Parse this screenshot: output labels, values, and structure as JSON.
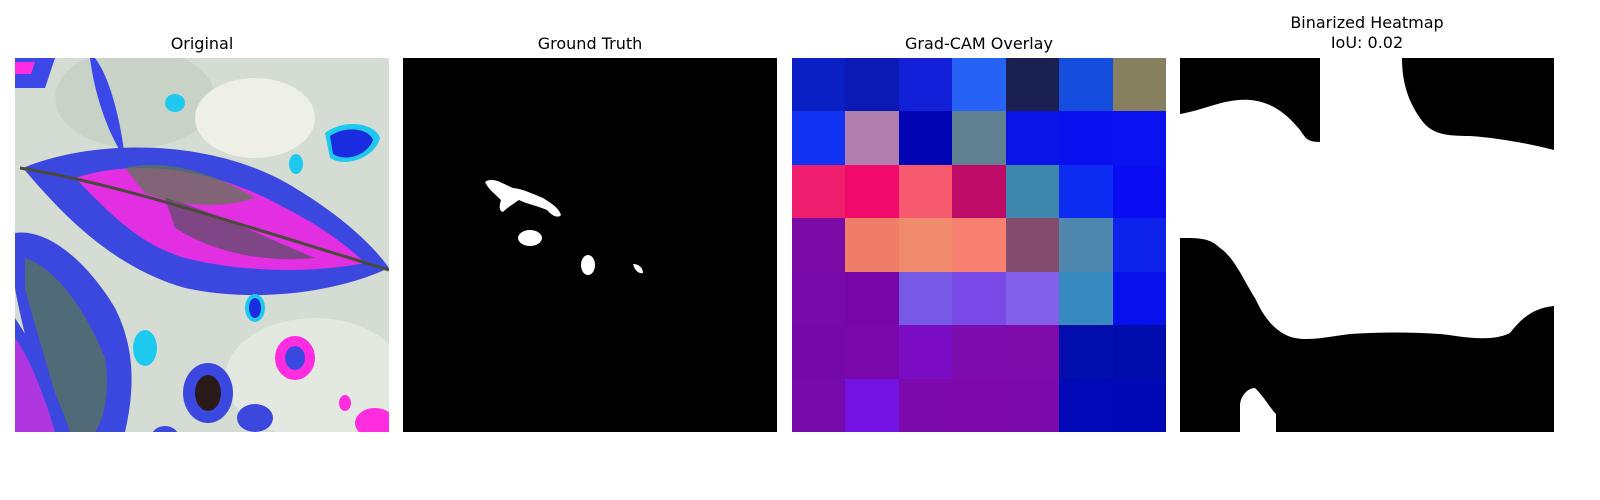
{
  "panels": [
    {
      "title": "Original"
    },
    {
      "title": "Ground Truth"
    },
    {
      "title": "Grad-CAM Overlay"
    },
    {
      "title": "Binarized Heatmap",
      "subtitle": "IoU: 0.02"
    }
  ],
  "gradcam_cells": [
    "#0a1fc4",
    "#0c1ab5",
    "#1220d8",
    "#2762f6",
    "#1a2150",
    "#154ddf",
    "#878060",
    "#1232f4",
    "#b17fad",
    "#0203b2",
    "#5e8090",
    "#0a14e6",
    "#0b10ef",
    "#0b12f0",
    "#ef1f6d",
    "#f10a6a",
    "#f75a6e",
    "#be0b68",
    "#3e86ae",
    "#0c2cf2",
    "#0a0df1",
    "#7a0ca5",
    "#ef7e69",
    "#f08a6c",
    "#f88070",
    "#844d6d",
    "#4f87ae",
    "#0d22ea",
    "#7709a8",
    "#7606a7",
    "#765ae6",
    "#7a4ae9",
    "#8360ea",
    "#368ac0",
    "#0810ec",
    "#7409a8",
    "#7908aa",
    "#7b0dc5",
    "#7c0cac",
    "#7e0cab",
    "#020fad",
    "#010cad",
    "#760aaa",
    "#7414e4",
    "#7c09ab",
    "#7e0aab",
    "#7c0bab",
    "#0008b8",
    "#0008b6"
  ]
}
